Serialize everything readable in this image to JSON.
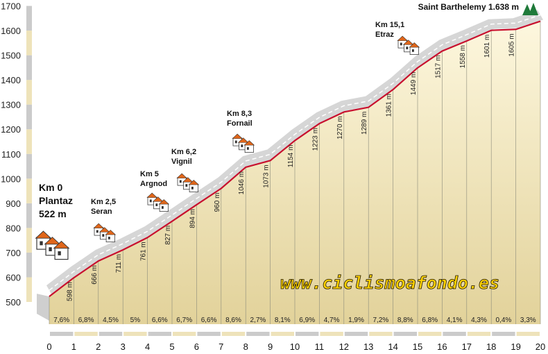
{
  "chart_data": {
    "type": "area",
    "x": [
      0,
      1,
      2,
      3,
      4,
      5,
      6,
      7,
      8,
      9,
      10,
      11,
      12,
      13,
      14,
      15,
      16,
      17,
      18,
      19,
      20
    ],
    "y": [
      522,
      598,
      666,
      711,
      761,
      827,
      894,
      960,
      1046,
      1073,
      1154,
      1223,
      1270,
      1289,
      1361,
      1449,
      1517,
      1558,
      1601,
      1605,
      1638
    ],
    "altitude_labels": [
      "598 m",
      "666 m",
      "711 m",
      "761 m",
      "827 m",
      "894 m",
      "960 m",
      "1046 m",
      "1073 m",
      "1154 m",
      "1223 m",
      "1270 m",
      "1289 m",
      "1361 m",
      "1449 m",
      "1517 m",
      "1558 m",
      "1601 m",
      "1605 m"
    ],
    "gradients": [
      "7,6%",
      "6,8%",
      "4,5%",
      "5%",
      "6,6%",
      "6,7%",
      "6,6%",
      "8,6%",
      "2,7%",
      "8,1%",
      "6,9%",
      "4,7%",
      "1,9%",
      "7,2%",
      "8,8%",
      "6,8%",
      "4,1%",
      "4,3%",
      "0,4%",
      "3,3%"
    ],
    "x_ticks": [
      "0",
      "1",
      "2",
      "3",
      "4",
      "5",
      "6",
      "7",
      "8",
      "9",
      "10",
      "11",
      "12",
      "13",
      "14",
      "15",
      "16",
      "17",
      "18",
      "19",
      "20"
    ],
    "y_ticks": [
      "500",
      "600",
      "700",
      "800",
      "900",
      "1000",
      "1100",
      "1200",
      "1300",
      "1400",
      "1500",
      "1600",
      "1700"
    ],
    "xlim": [
      0,
      20
    ],
    "ylim": [
      500,
      1700
    ],
    "places": [
      {
        "km": 2.5,
        "lines": [
          "Km 2,5",
          "Seran"
        ]
      },
      {
        "km": 5,
        "lines": [
          "Km 5",
          "Argnod"
        ]
      },
      {
        "km": 6.2,
        "lines": [
          "Km 6,2",
          "Vignil"
        ]
      },
      {
        "km": 8.3,
        "lines": [
          "Km 8,3",
          "Fornail"
        ]
      },
      {
        "km": 15.1,
        "lines": [
          "Km 15,1",
          "Etraz"
        ]
      }
    ],
    "start": {
      "lines": [
        "Km 0",
        "Plantaz",
        "522 m"
      ]
    },
    "summit": "Saint Barthelemy 1.638 m",
    "website": "www.ciclismoafondo.es",
    "colors": {
      "line": "#c8102e",
      "fill_top": "#fdf7de",
      "fill_bottom": "#e2d29a",
      "road": "#d6d6d6",
      "road_edge": "#ffffff",
      "axis_light": "#eee3ba",
      "axis_dark": "#cbcbcb",
      "tree": "#1f7a3a",
      "roof": "#e0661a"
    }
  }
}
